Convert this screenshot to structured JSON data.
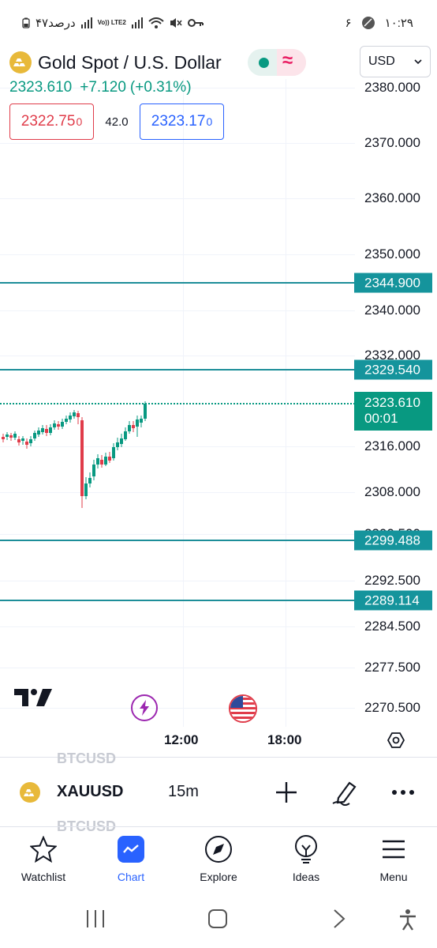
{
  "status_bar": {
    "battery": "۴۷درصد",
    "network_label": "Vo)) LTE2",
    "time": "۱۰:۲۹",
    "notification_count": "۶"
  },
  "header": {
    "title": "Gold Spot / U.S. Dollar",
    "currency": "USD",
    "last_price": "2323.610",
    "change": "+7.120",
    "change_percent": "(+0.31%)",
    "bid": "2322.75",
    "bid_fraction": "0",
    "spread": "42.0",
    "ask": "2323.17",
    "ask_fraction": "0"
  },
  "chart": {
    "y_ticks": [
      "2380.000",
      "2370.000",
      "2360.000",
      "2350.000",
      "2340.000",
      "2332.000",
      "2316.000",
      "2308.000",
      "2300.500",
      "2292.500",
      "2284.500",
      "2277.500",
      "2270.500"
    ],
    "x_ticks": [
      "12:00",
      "18:00"
    ],
    "horizontal_lines": [
      "2344.900",
      "2329.540",
      "2299.488",
      "2289.114"
    ],
    "current_price_label": "2323.610",
    "countdown": "00:01",
    "colors": {
      "up": "#089981",
      "down": "#e03c4a",
      "line": "#1d8e99"
    }
  },
  "symbol_bar": {
    "ghost_above": "BTCUSD",
    "ghost_below": "BTCUSD",
    "symbol": "XAUUSD",
    "interval": "15m"
  },
  "bottom_nav": {
    "items": [
      {
        "label": "Watchlist",
        "icon": "star-icon"
      },
      {
        "label": "Chart",
        "icon": "chart-icon"
      },
      {
        "label": "Explore",
        "icon": "compass-icon"
      },
      {
        "label": "Ideas",
        "icon": "lightbulb-icon"
      },
      {
        "label": "Menu",
        "icon": "menu-icon"
      }
    ]
  }
}
